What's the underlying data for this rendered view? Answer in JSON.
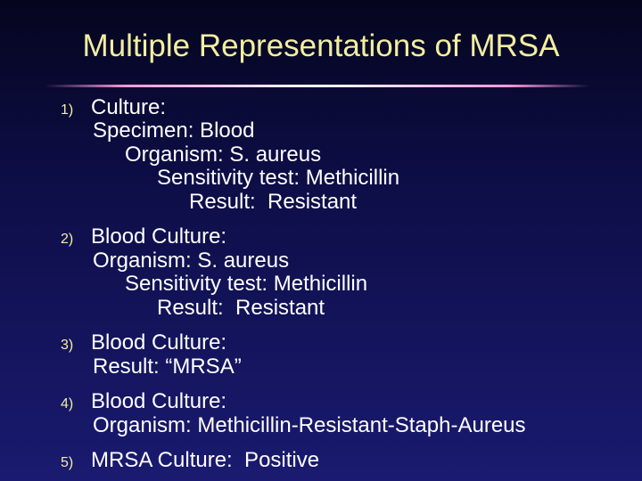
{
  "title": "Multiple Representations of MRSA",
  "items": [
    {
      "number": "1)",
      "lines": [
        "Culture:",
        "Specimen: Blood",
        "Organism: S. aureus",
        "Sensitivity test: Methicillin",
        "Result:  Resistant"
      ]
    },
    {
      "number": "2)",
      "lines": [
        "Blood Culture:",
        "Organism: S. aureus",
        "Sensitivity test: Methicillin",
        "Result:  Resistant"
      ]
    },
    {
      "number": "3)",
      "lines": [
        "Blood Culture:",
        "Result: “MRSA”"
      ]
    },
    {
      "number": "4)",
      "lines": [
        "Blood Culture:",
        "Organism: Methicillin-Resistant-Staph-Aureus"
      ]
    },
    {
      "number": "5)",
      "lines": [
        "MRSA Culture:  Positive"
      ]
    }
  ]
}
